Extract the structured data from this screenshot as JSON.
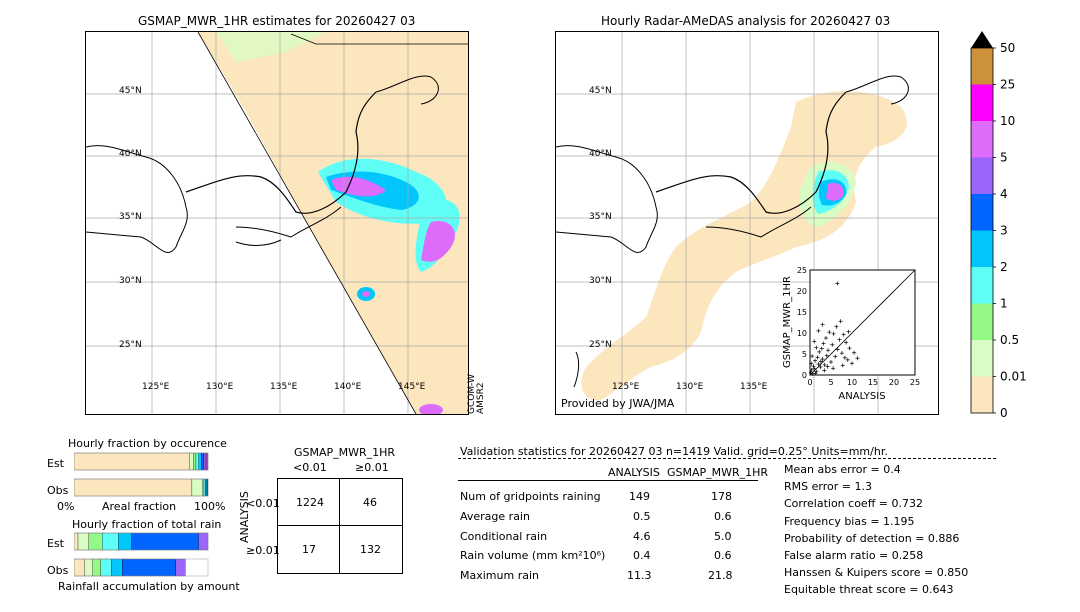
{
  "left_map": {
    "title": "GSMAP_MWR_1HR estimates for 20260427 03",
    "lat_labels": [
      "45°N",
      "40°N",
      "35°N",
      "30°N",
      "25°N"
    ],
    "lon_labels": [
      "125°E",
      "130°E",
      "135°E",
      "140°E",
      "145°E"
    ],
    "side_label": "GCOM-W\nAMSR2"
  },
  "right_map": {
    "title": "Hourly Radar-AMeDAS analysis for 20260427 03",
    "lat_labels": [
      "45°N",
      "40°N",
      "35°N",
      "30°N",
      "25°N"
    ],
    "lon_labels": [
      "125°E",
      "130°E",
      "135°E"
    ],
    "provided_by": "Provided by JWA/JMA"
  },
  "colorbar": {
    "ticks": [
      "0",
      "0.01",
      "0.5",
      "1",
      "2",
      "3",
      "4",
      "5",
      "10",
      "25",
      "50"
    ],
    "colors": [
      "#fce6be",
      "#d9fcc4",
      "#95f985",
      "#5efdf6",
      "#00c6fc",
      "#0065fe",
      "#9a65fb",
      "#dd6cfb",
      "#fd00fd",
      "#cc9139"
    ]
  },
  "chart_data": [
    {
      "type": "scatter",
      "title": "",
      "xlabel": "ANALYSIS",
      "ylabel": "GSMAP_MWR_1HR",
      "xlim": [
        0,
        25
      ],
      "ylim": [
        0,
        25
      ],
      "xticks": [
        "0",
        "5",
        "10",
        "15",
        "20",
        "25"
      ],
      "yticks": [
        "0",
        "5",
        "10",
        "15",
        "20",
        "25"
      ],
      "points": [
        [
          0.2,
          0.5
        ],
        [
          0.4,
          1.2
        ],
        [
          0.6,
          0.3
        ],
        [
          0.8,
          2.1
        ],
        [
          1.0,
          1.5
        ],
        [
          1.2,
          3.4
        ],
        [
          1.5,
          0.8
        ],
        [
          1.8,
          4.2
        ],
        [
          2.0,
          2.6
        ],
        [
          2.2,
          5.5
        ],
        [
          2.5,
          1.9
        ],
        [
          2.8,
          6.3
        ],
        [
          3.0,
          3.8
        ],
        [
          3.2,
          7.5
        ],
        [
          3.5,
          2.4
        ],
        [
          3.8,
          8.8
        ],
        [
          4.0,
          4.6
        ],
        [
          4.3,
          5.9
        ],
        [
          4.6,
          10.2
        ],
        [
          5.0,
          3.1
        ],
        [
          5.3,
          7.2
        ],
        [
          5.6,
          9.8
        ],
        [
          6.0,
          4.4
        ],
        [
          6.3,
          11.5
        ],
        [
          6.6,
          6.1
        ],
        [
          7.0,
          8.4
        ],
        [
          7.3,
          12.8
        ],
        [
          7.6,
          5.2
        ],
        [
          8.0,
          9.6
        ],
        [
          8.3,
          4.1
        ],
        [
          8.6,
          7.7
        ],
        [
          9.0,
          3.6
        ],
        [
          9.4,
          6.4
        ],
        [
          10.0,
          2.8
        ],
        [
          10.5,
          5.3
        ],
        [
          11.3,
          4.0
        ],
        [
          1.0,
          8.0
        ],
        [
          2.0,
          10.5
        ],
        [
          3.0,
          12.0
        ],
        [
          1.5,
          6.5
        ],
        [
          0.5,
          4.5
        ],
        [
          6.5,
          21.8
        ],
        [
          2.6,
          3.2
        ],
        [
          3.4,
          1.1
        ],
        [
          4.2,
          2.0
        ],
        [
          5.5,
          1.6
        ],
        [
          7.8,
          2.3
        ],
        [
          9.2,
          10.3
        ],
        [
          0.3,
          2.7
        ],
        [
          1.3,
          0.4
        ]
      ]
    },
    {
      "type": "bar",
      "title": "Hourly fraction by occurence",
      "categories": [
        "Est",
        "Obs"
      ],
      "xlabel": "Areal fraction",
      "x_tick_labels": [
        "0%",
        "100%"
      ],
      "stacked_fractions": [
        [
          0.86,
          0.03,
          0.02,
          0.02,
          0.02,
          0.02,
          0.01,
          0.01,
          0.01
        ],
        [
          0.88,
          0.08,
          0.01,
          0.01,
          0.01,
          0.005,
          0.005,
          0.0,
          0.0
        ]
      ]
    },
    {
      "type": "bar",
      "title": "Hourly fraction of total rain",
      "categories": [
        "Est",
        "Obs"
      ],
      "xlabel": "Rainfall accumulation by amount",
      "stacked_fractions": [
        [
          0.03,
          0.08,
          0.1,
          0.12,
          0.1,
          0.5,
          0.07
        ],
        [
          0.08,
          0.06,
          0.06,
          0.08,
          0.08,
          0.4,
          0.07
        ]
      ]
    }
  ],
  "contingency": {
    "col_header_title": "GSMAP_MWR_1HR",
    "col_headers": [
      "<0.01",
      "≥0.01"
    ],
    "row_header_title": "ANALYSIS",
    "row_headers": [
      "<0.01",
      "≥0.01"
    ],
    "cells": [
      [
        "1224",
        "46"
      ],
      [
        "17",
        "132"
      ]
    ]
  },
  "validation": {
    "header": "Validation statistics for 20260427 03  n=1419 Valid. grid=0.25° Units=mm/hr.",
    "col_analysis": "ANALYSIS",
    "col_gsmap": "GSMAP_MWR_1HR",
    "rows": [
      {
        "label": "Num of gridpoints raining",
        "analysis": "149",
        "gsmap": "178"
      },
      {
        "label": "Average rain",
        "analysis": "0.5",
        "gsmap": "0.6"
      },
      {
        "label": "Conditional rain",
        "analysis": "4.6",
        "gsmap": "5.0"
      },
      {
        "label": "Rain volume (mm km²10⁶)",
        "analysis": "0.4",
        "gsmap": "0.6"
      },
      {
        "label": "Maximum rain",
        "analysis": "11.3",
        "gsmap": "21.8"
      }
    ],
    "scores": [
      "Mean abs error =    0.4",
      "RMS error =    1.3",
      "Correlation coeff =  0.732",
      "Frequency bias =  1.195",
      "Probability of detection =  0.886",
      "False alarm ratio =  0.258",
      "Hanssen & Kuipers score =  0.850",
      "Equitable threat score =  0.643"
    ]
  }
}
